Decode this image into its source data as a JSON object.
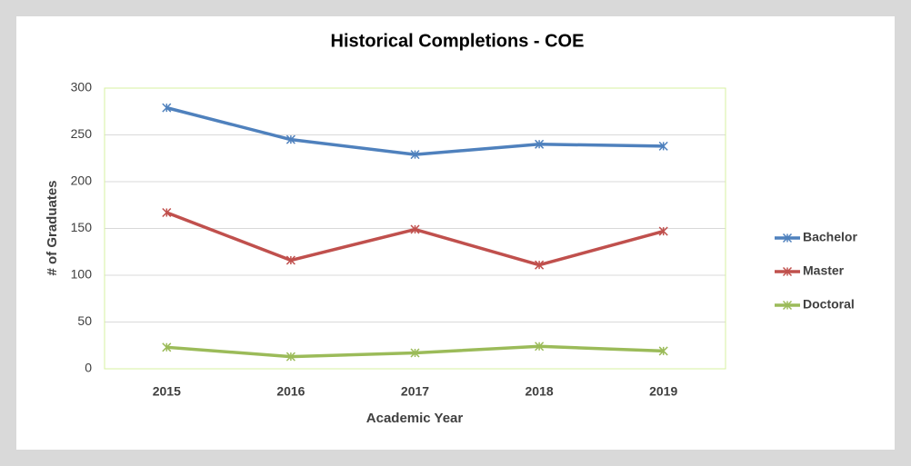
{
  "chart_data": {
    "type": "line",
    "title": "Historical Completions - COE",
    "x_label": "Academic Year",
    "y_label": "# of Graduates",
    "categories": [
      "2015",
      "2016",
      "2017",
      "2018",
      "2019"
    ],
    "series": [
      {
        "name": "Bachelor",
        "color": "#4f81bd",
        "values": [
          279,
          245,
          229,
          240,
          238
        ]
      },
      {
        "name": "Master",
        "color": "#c0504d",
        "values": [
          167,
          116,
          149,
          111,
          147
        ]
      },
      {
        "name": "Doctoral",
        "color": "#9bbb59",
        "values": [
          23,
          13,
          17,
          24,
          19
        ]
      }
    ],
    "ylim": [
      0,
      300
    ],
    "yticks": [
      0,
      50,
      100,
      150,
      200,
      250,
      300
    ],
    "grid": true,
    "legend": "right"
  }
}
